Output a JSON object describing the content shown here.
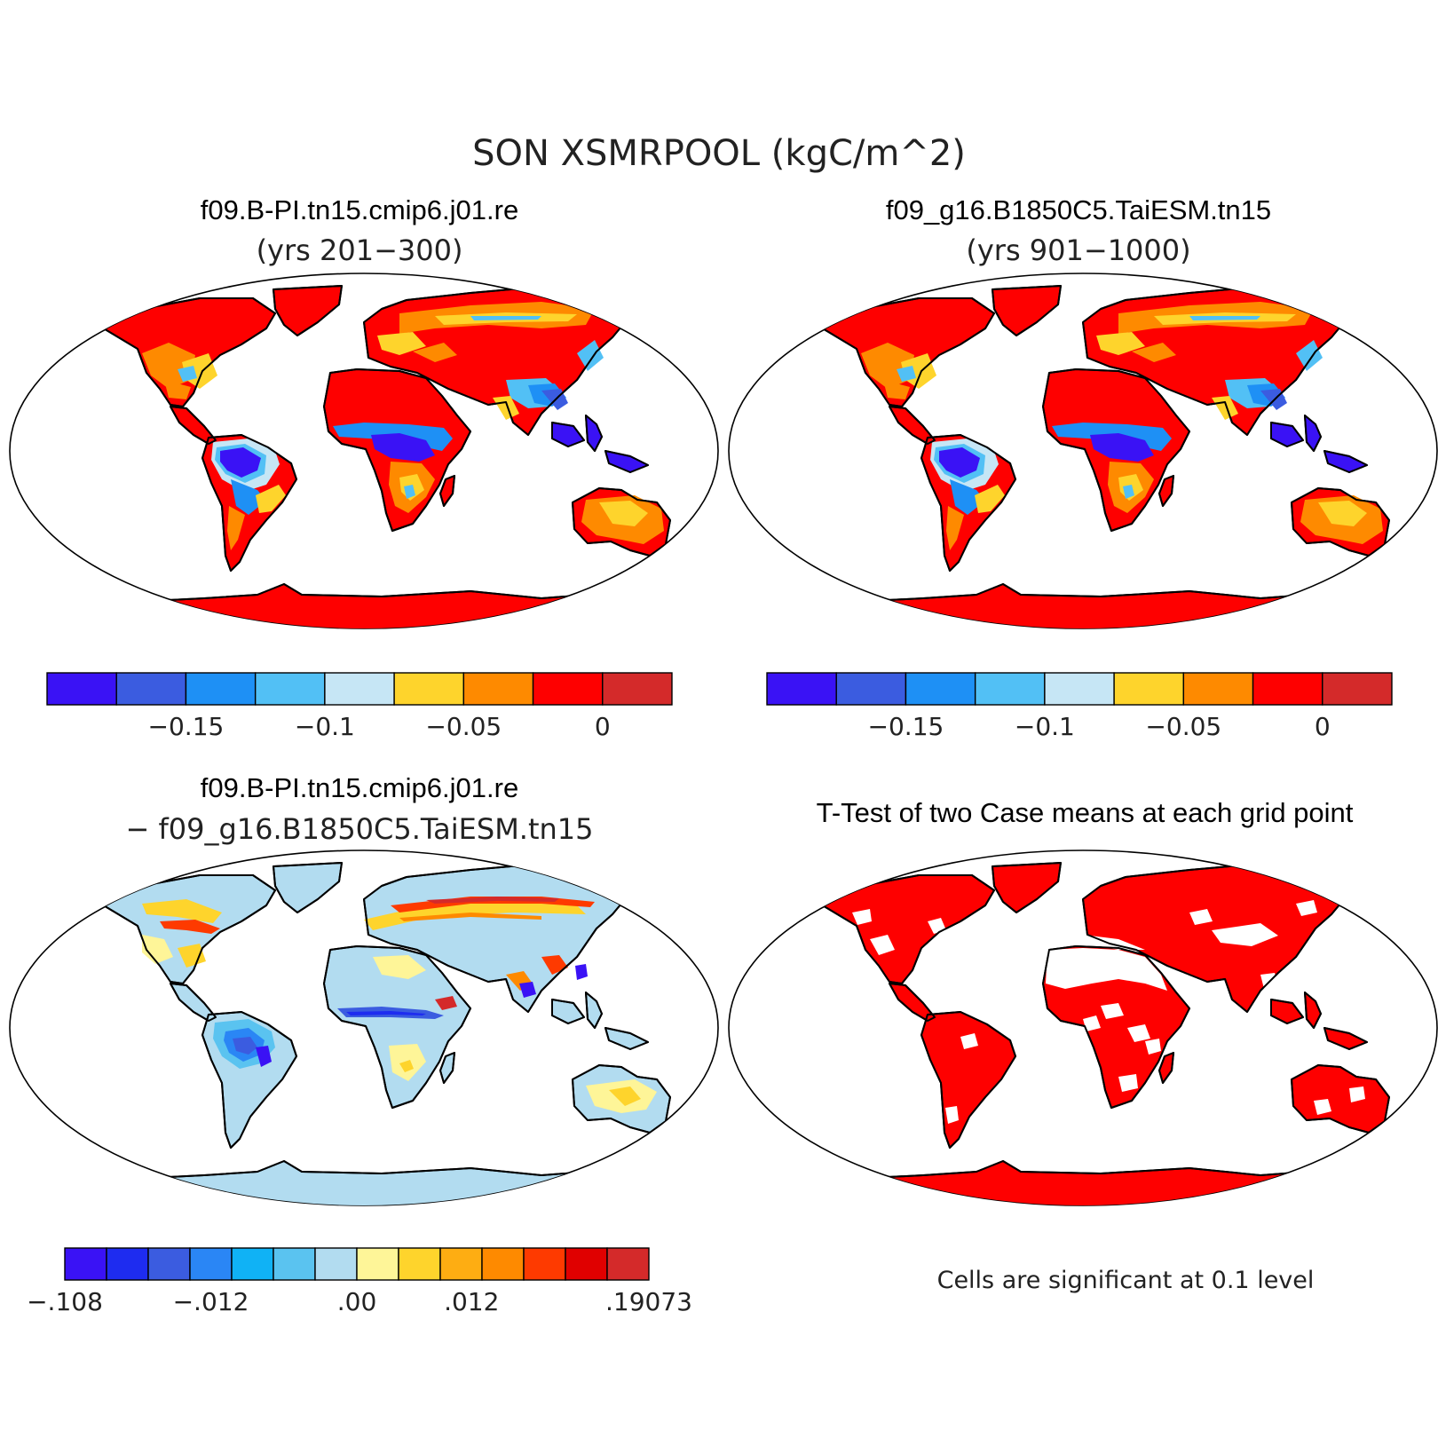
{
  "figure": {
    "title": "SON XSMRPOOL (kgC/m^2)"
  },
  "panels": {
    "case1": {
      "name": "f09.B-PI.tn15.cmip6.j01.re",
      "years": "(yrs 201−300)"
    },
    "case2": {
      "name": "f09_g16.B1850C5.TaiESM.tn15",
      "years": "(yrs 901−1000)"
    },
    "diff": {
      "line1": "f09.B-PI.tn15.cmip6.j01.re",
      "line2": "− f09_g16.B1850C5.TaiESM.tn15"
    },
    "ttest": {
      "title": "T-Test of two Case means at each grid point",
      "note": "Cells are significant at 0.1 level"
    }
  },
  "colorbars": {
    "case": {
      "colors": [
        "#3a12f5",
        "#3b5ce0",
        "#1e90f5",
        "#52c0f5",
        "#c6e6f5",
        "#fed42c",
        "#fe8a00",
        "#fe0000",
        "#d42a2a"
      ],
      "tick_labels": [
        "−0.15",
        "−0.1",
        "−0.05",
        "0"
      ]
    },
    "diff": {
      "colors": [
        "#3a12f5",
        "#1e2cf0",
        "#3b5ce0",
        "#2a86f5",
        "#10b2f5",
        "#5ac3f0",
        "#b2dcf0",
        "#fef598",
        "#fed42c",
        "#fead12",
        "#fe8a00",
        "#fe3a00",
        "#e00000",
        "#d42a2a"
      ],
      "tick_labels": [
        "−.108",
        "−.012",
        ".00",
        ".012",
        ".19073"
      ]
    }
  },
  "map_colors": {
    "ocean": "#ffffff",
    "significant": "#fe0000",
    "antarctica_case": "#d42a2a",
    "antarctica_diff": "#fef598"
  }
}
